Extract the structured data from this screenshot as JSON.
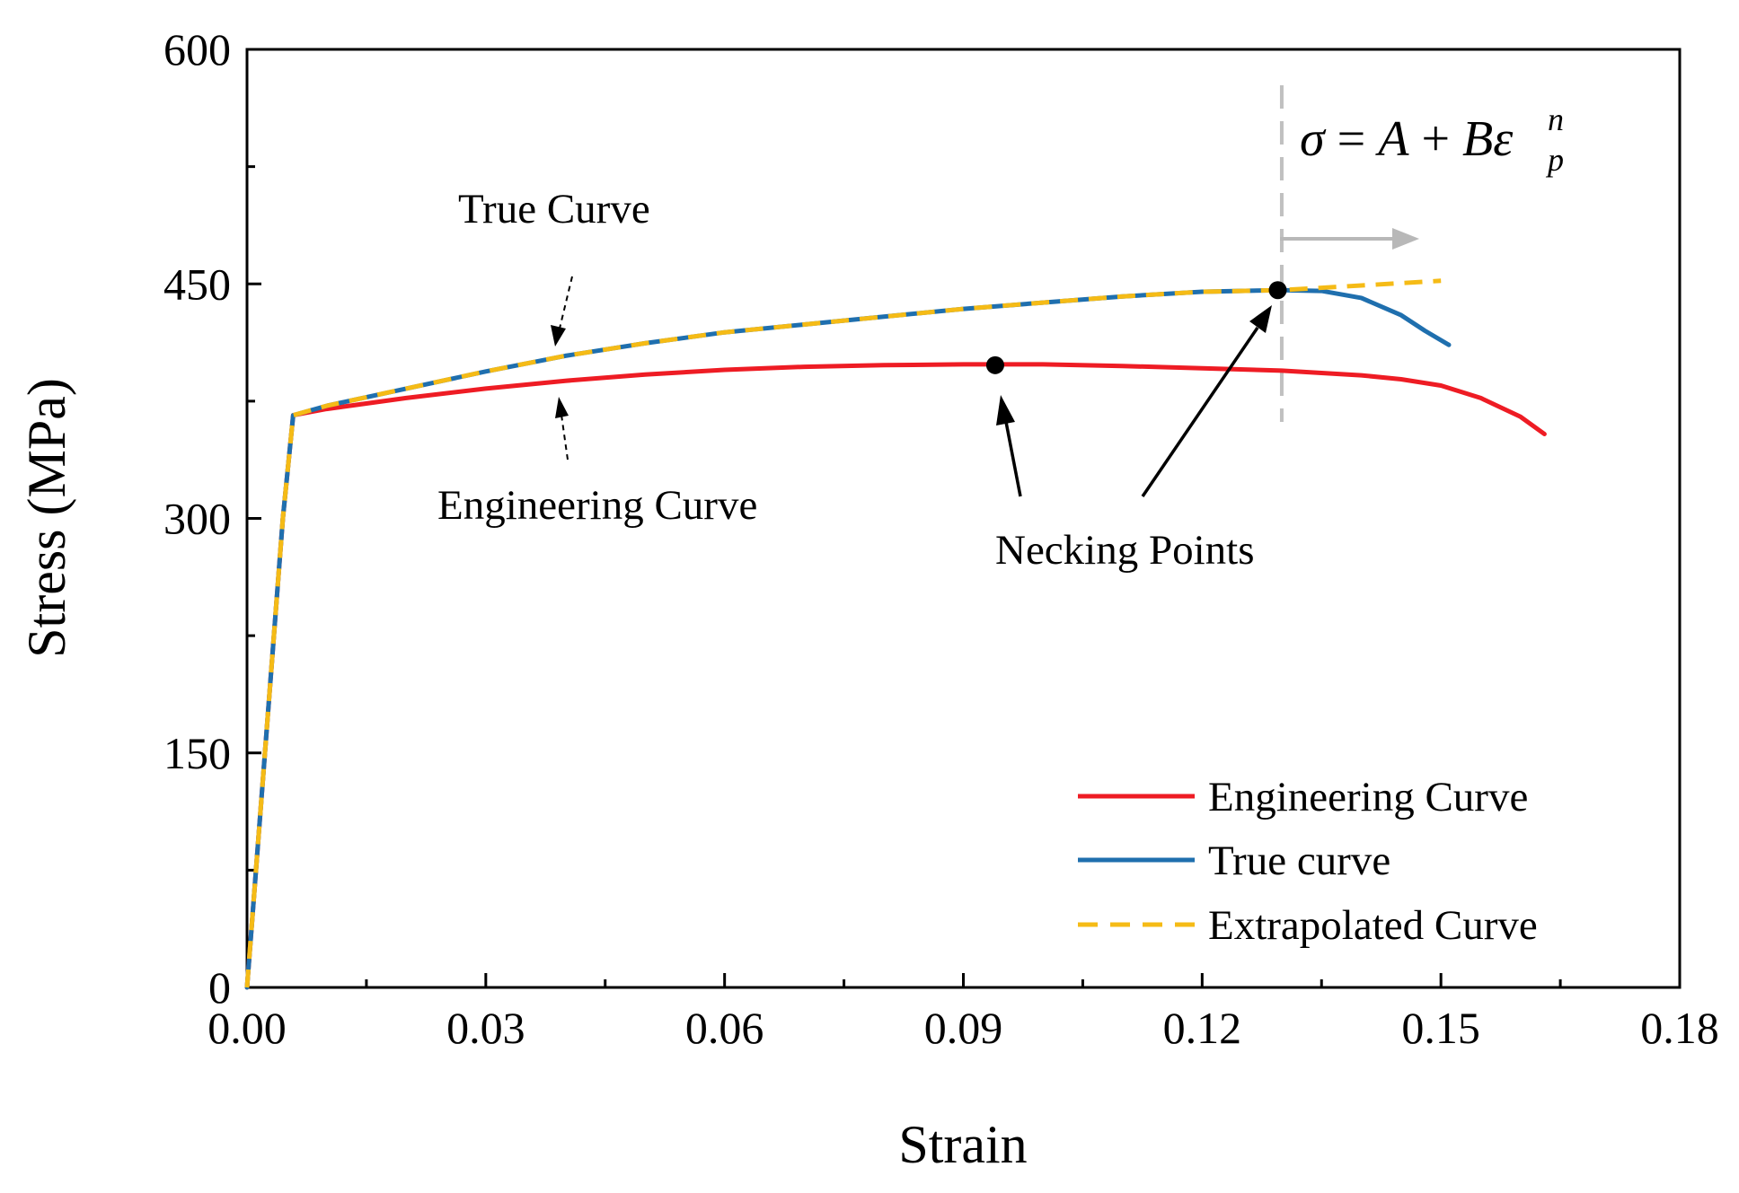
{
  "chart_data": {
    "type": "line",
    "xlabel": "Strain",
    "ylabel": "Stress (MPa)",
    "xlim": [
      0,
      0.18
    ],
    "ylim": [
      0,
      600
    ],
    "x_ticks": [
      "0.00",
      "0.03",
      "0.06",
      "0.09",
      "0.12",
      "0.15",
      "0.18"
    ],
    "x_tick_values": [
      0,
      0.03,
      0.06,
      0.09,
      0.12,
      0.15,
      0.18
    ],
    "y_ticks": [
      "0",
      "150",
      "300",
      "450",
      "600"
    ],
    "y_tick_values": [
      0,
      150,
      300,
      450,
      600
    ],
    "grid": false,
    "legend_position": "bottom-right",
    "series": [
      {
        "name": "Engineering Curve",
        "color": "#ee1c24",
        "style": "solid",
        "x": [
          0,
          0.0015,
          0.003,
          0.0045,
          0.0058,
          0.01,
          0.02,
          0.03,
          0.04,
          0.05,
          0.06,
          0.07,
          0.08,
          0.09,
          0.1,
          0.11,
          0.12,
          0.13,
          0.14,
          0.145,
          0.15,
          0.155,
          0.16,
          0.163
        ],
        "y": [
          0,
          100,
          200,
          300,
          366,
          370,
          377,
          383,
          388,
          392,
          395,
          397,
          398,
          398.5,
          398.5,
          397.5,
          396,
          394.5,
          391.5,
          389,
          385,
          377,
          365,
          354
        ]
      },
      {
        "name": "True curve",
        "color": "#1f6fae",
        "style": "solid",
        "x": [
          0,
          0.0015,
          0.003,
          0.0045,
          0.0058,
          0.01,
          0.02,
          0.03,
          0.04,
          0.05,
          0.06,
          0.07,
          0.08,
          0.09,
          0.1,
          0.11,
          0.12,
          0.13,
          0.135,
          0.14,
          0.145,
          0.148,
          0.151
        ],
        "y": [
          0,
          100,
          200,
          300,
          366,
          372,
          383,
          394,
          404,
          412,
          419,
          424,
          429,
          434,
          438,
          442,
          445,
          446,
          445.5,
          441,
          430,
          420,
          411
        ]
      },
      {
        "name": "Extrapolated Curve",
        "color": "#f5bb16",
        "style": "dashed",
        "x": [
          0,
          0.0015,
          0.003,
          0.0045,
          0.0058,
          0.01,
          0.02,
          0.03,
          0.04,
          0.05,
          0.06,
          0.07,
          0.08,
          0.09,
          0.1,
          0.11,
          0.12,
          0.13,
          0.14,
          0.15
        ],
        "y": [
          0,
          100,
          200,
          300,
          366,
          372,
          383,
          394,
          404,
          412,
          419,
          424,
          429,
          434,
          438,
          442,
          445,
          446,
          449,
          452
        ]
      }
    ],
    "necking_points": [
      {
        "x": 0.094,
        "y": 398
      },
      {
        "x": 0.1295,
        "y": 446
      }
    ],
    "annotations": {
      "true_curve": "True Curve",
      "engineering_curve": "Engineering Curve",
      "necking_points": "Necking Points",
      "formula": {
        "sigma": "σ",
        "eq": " = ",
        "A": "A",
        "plus": " + ",
        "B": "B",
        "epsilon": "ε",
        "sup": "n",
        "sub": "p"
      },
      "formula_line_x": 0.13
    }
  }
}
